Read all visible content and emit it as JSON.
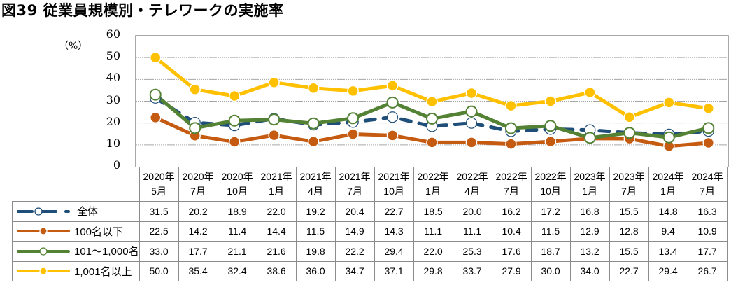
{
  "title": "図39 従業員規模別・テレワークの実施率",
  "chart_data": {
    "type": "line",
    "title": "図39 従業員規模別・テレワークの実施率",
    "ylabel": "（%）",
    "xlabel": "",
    "ylim": [
      0,
      60
    ],
    "yticks": [
      0,
      10,
      20,
      30,
      40,
      50,
      60
    ],
    "grid": true,
    "legend": "table-left",
    "categories": [
      [
        "2020年",
        "5月"
      ],
      [
        "2020年",
        "7月"
      ],
      [
        "2020年",
        "10月"
      ],
      [
        "2021年",
        "1月"
      ],
      [
        "2021年",
        "4月"
      ],
      [
        "2021年",
        "7月"
      ],
      [
        "2021年",
        "10月"
      ],
      [
        "2022年",
        "1月"
      ],
      [
        "2022年",
        "4月"
      ],
      [
        "2022年",
        "7月"
      ],
      [
        "2022年",
        "10月"
      ],
      [
        "2023年",
        "1月"
      ],
      [
        "2023年",
        "7月"
      ],
      [
        "2024年",
        "1月"
      ],
      [
        "2024年",
        "7月"
      ]
    ],
    "series": [
      {
        "name": "全体",
        "color": "#1f4e79",
        "style": "dashed",
        "marker": "open",
        "values": [
          31.5,
          20.2,
          18.9,
          22.0,
          19.2,
          20.4,
          22.7,
          18.5,
          20.0,
          16.2,
          17.2,
          16.8,
          15.5,
          14.8,
          16.3
        ]
      },
      {
        "name": "100名以下",
        "color": "#c55a11",
        "style": "solid",
        "marker": "filled",
        "values": [
          22.5,
          14.2,
          11.4,
          14.4,
          11.5,
          14.9,
          14.3,
          11.1,
          11.1,
          10.4,
          11.5,
          12.9,
          12.8,
          9.4,
          10.9
        ]
      },
      {
        "name": "101～1,000名",
        "color": "#548235",
        "style": "solid",
        "marker": "open",
        "values": [
          33.0,
          17.7,
          21.1,
          21.6,
          19.8,
          22.2,
          29.4,
          22.0,
          25.3,
          17.6,
          18.7,
          13.2,
          15.5,
          13.4,
          17.7
        ]
      },
      {
        "name": "1,001名以上",
        "color": "#ffc000",
        "style": "solid",
        "marker": "filled",
        "values": [
          50.0,
          35.4,
          32.4,
          38.6,
          36.0,
          34.7,
          37.1,
          29.8,
          33.7,
          27.9,
          30.0,
          34.0,
          22.7,
          29.4,
          26.7
        ]
      }
    ]
  }
}
